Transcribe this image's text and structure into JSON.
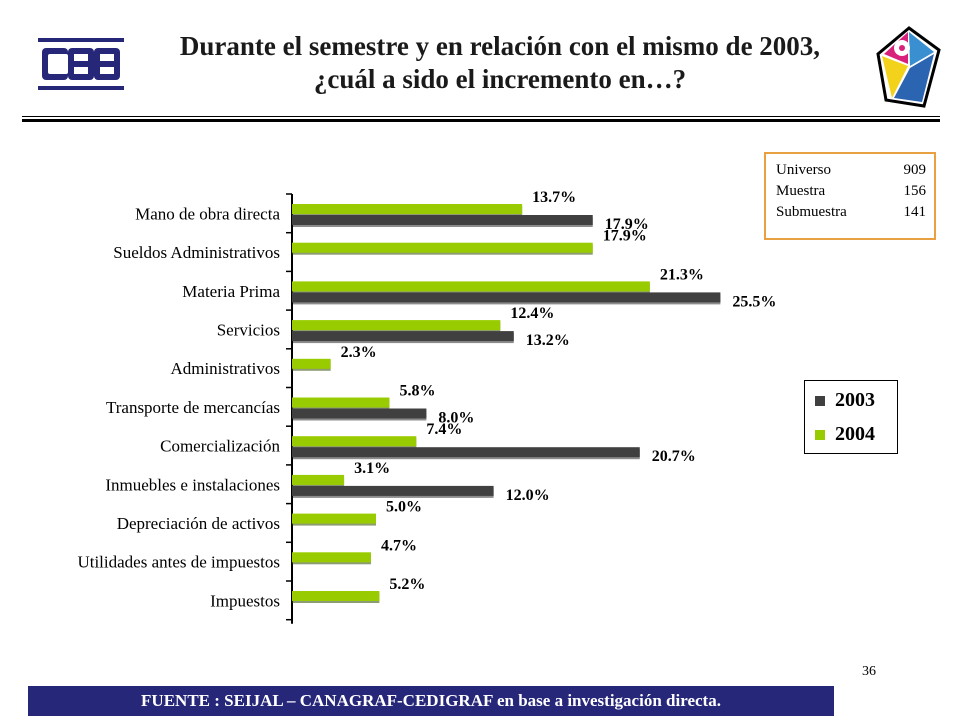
{
  "title": "Durante el semestre y en relación con el mismo de 2003, ¿cuál a sido el incremento en…?",
  "info_box": [
    {
      "label": "Universo",
      "value": "909"
    },
    {
      "label": "Muestra",
      "value": "156"
    },
    {
      "label": "Submuestra",
      "value": "141"
    }
  ],
  "page_number": "36",
  "footer": "FUENTE : SEIJAL – CANAGRAF-CEDIGRAF en base a investigación directa.",
  "colors": {
    "series_2003": "#404040",
    "series_2004": "#99cc00",
    "footer_bg": "#27277a",
    "info_border": "#e8a040"
  },
  "logos": {
    "left": "CGB-logo",
    "right": "round-color-logo"
  },
  "chart_data": {
    "type": "bar",
    "orientation": "horizontal",
    "categories": [
      "Mano de obra directa",
      "Sueldos Administrativos",
      "Materia Prima",
      "Servicios",
      "Administrativos",
      "Transporte de mercancías",
      "Comercialización",
      "Inmuebles e instalaciones",
      "Depreciación de activos",
      "Utilidades antes de impuestos",
      "Impuestos"
    ],
    "series": [
      {
        "name": "2003",
        "values": [
          17.9,
          null,
          25.5,
          13.2,
          null,
          8.0,
          20.7,
          12.0,
          null,
          null,
          null
        ],
        "labels": [
          "17.9%",
          "",
          "25.5%",
          "13.2%",
          "",
          "8.0%",
          "20.7%",
          "12.0%",
          "",
          "",
          ""
        ]
      },
      {
        "name": "2004",
        "values": [
          13.7,
          17.9,
          21.3,
          12.4,
          2.3,
          5.8,
          7.4,
          3.1,
          5.0,
          4.7,
          5.2
        ],
        "labels": [
          "13.7%",
          "17.9%",
          "21.3%",
          "12.4%",
          "2.3%",
          "5.8%",
          "7.4%",
          "3.1%",
          "5.0%",
          "4.7%",
          "5.2%"
        ]
      }
    ],
    "xlim": [
      0,
      25.5
    ],
    "legend_position": "right",
    "grid": false
  }
}
